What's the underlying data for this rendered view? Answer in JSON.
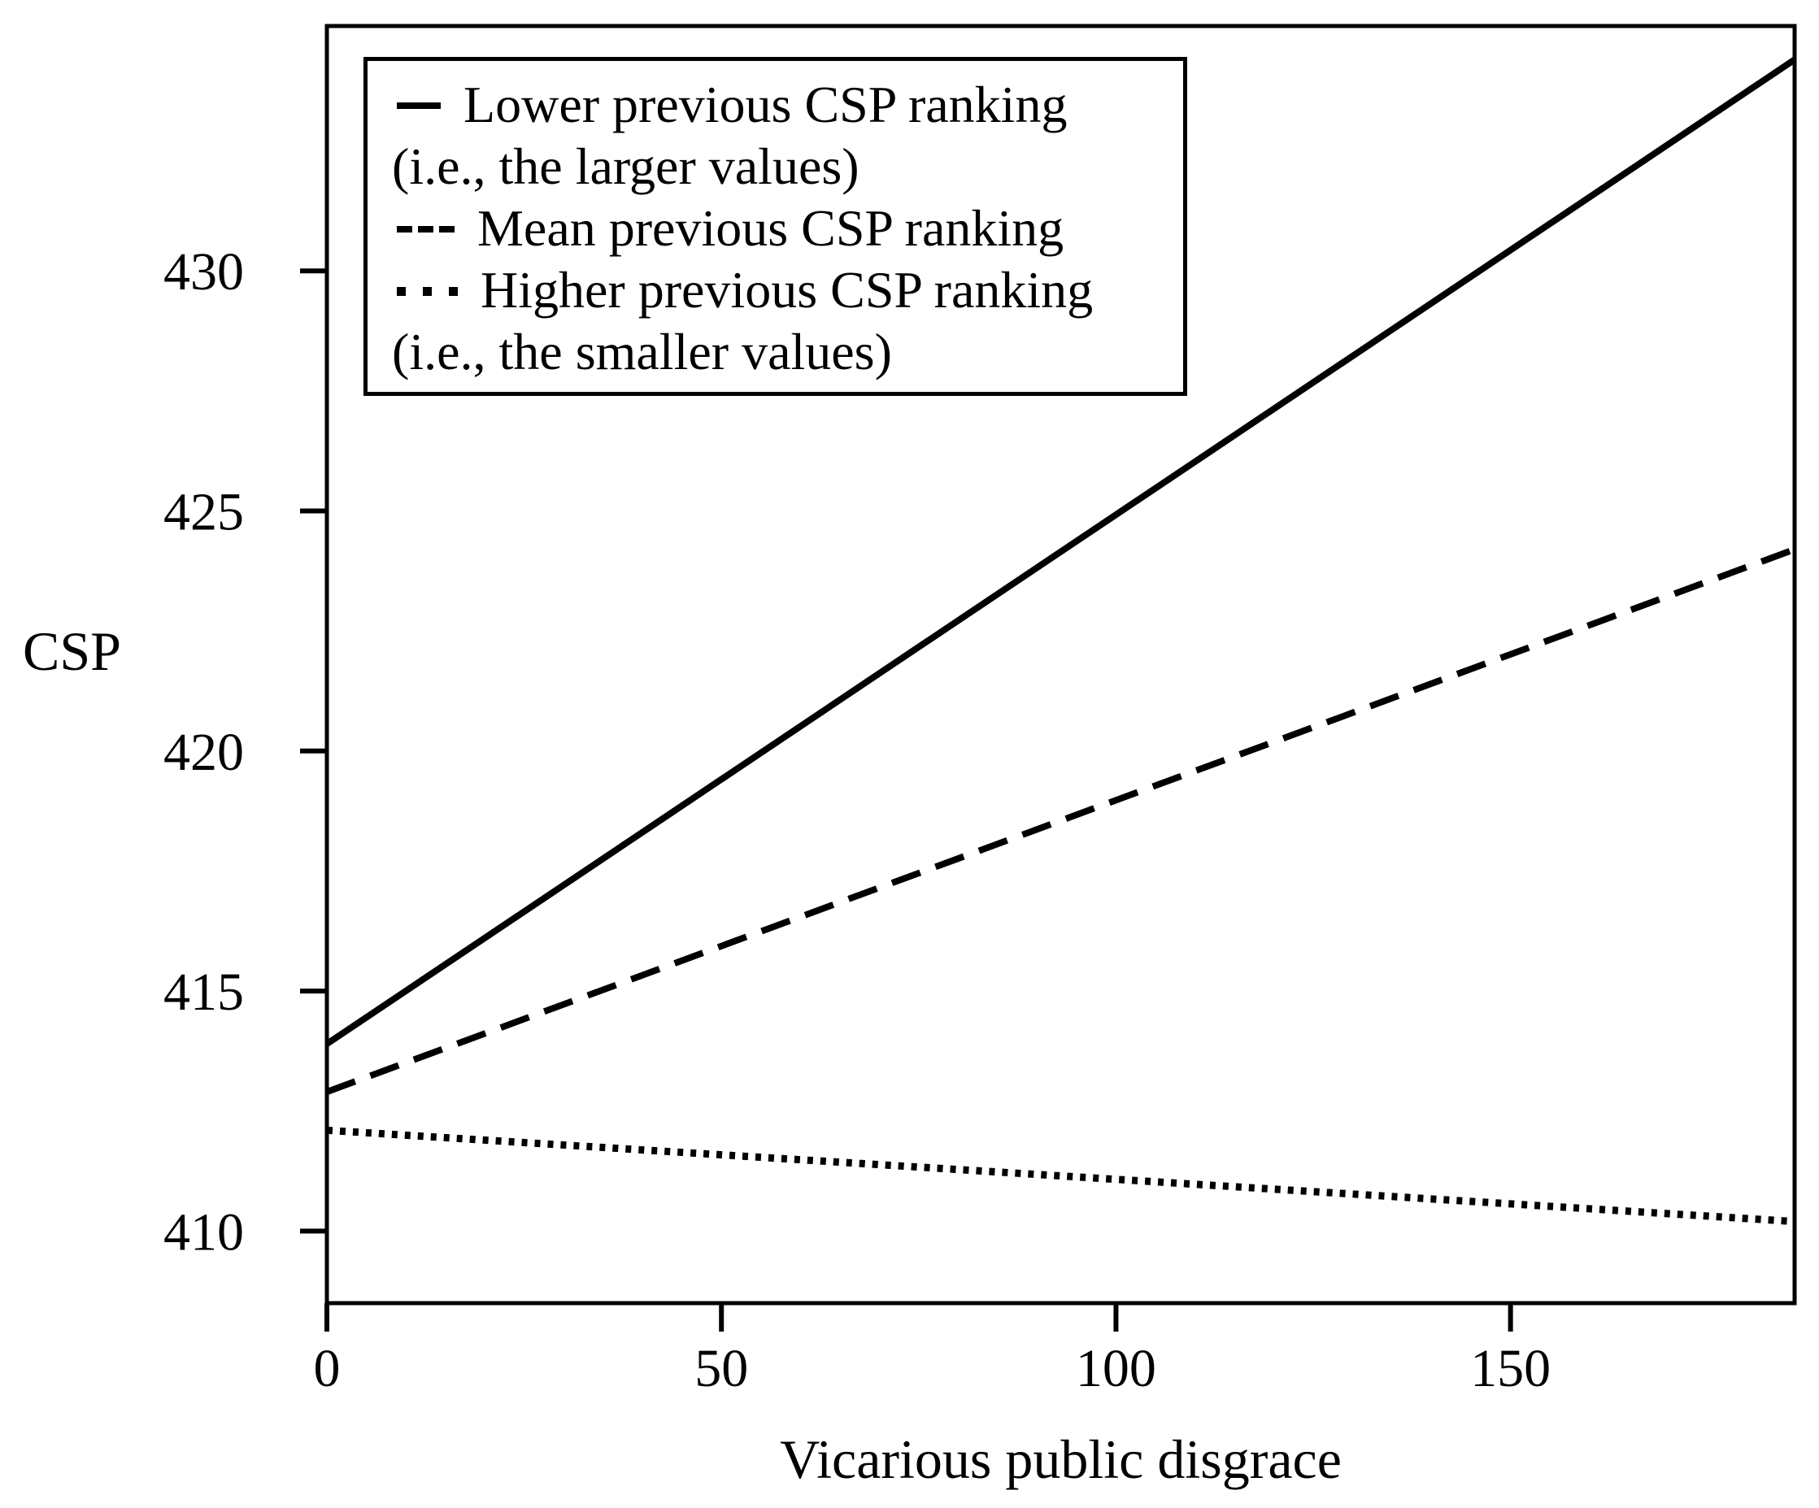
{
  "figure": {
    "background": "#ffffff",
    "ink": "#000000"
  },
  "chart_data": {
    "type": "line",
    "title": "",
    "xlabel": "Vicarious public disgrace",
    "ylabel": "CSP",
    "xlim": [
      0,
      186
    ],
    "ylim": [
      408.5,
      435.1
    ],
    "x_ticks": [
      0,
      50,
      100,
      150
    ],
    "y_ticks": [
      410,
      415,
      420,
      425,
      430
    ],
    "grid": false,
    "legend_position": "top-left",
    "series": [
      {
        "name": "Lower previous CSP ranking (i.e., the larger values)",
        "legend_lines": [
          "Lower previous CSP ranking",
          "(i.e., the larger values)"
        ],
        "style": "solid",
        "x": [
          0,
          186
        ],
        "y": [
          413.9,
          434.4
        ]
      },
      {
        "name": "Mean previous CSP ranking",
        "legend_lines": [
          "Mean previous CSP ranking"
        ],
        "style": "dashed",
        "x": [
          0,
          186
        ],
        "y": [
          412.9,
          424.2
        ]
      },
      {
        "name": "Higher previous CSP ranking (i.e., the smaller values)",
        "legend_lines": [
          "Higher previous CSP ranking",
          "(i.e., the smaller values)"
        ],
        "style": "dotted",
        "x": [
          0,
          186
        ],
        "y": [
          412.1,
          410.2
        ]
      }
    ]
  }
}
